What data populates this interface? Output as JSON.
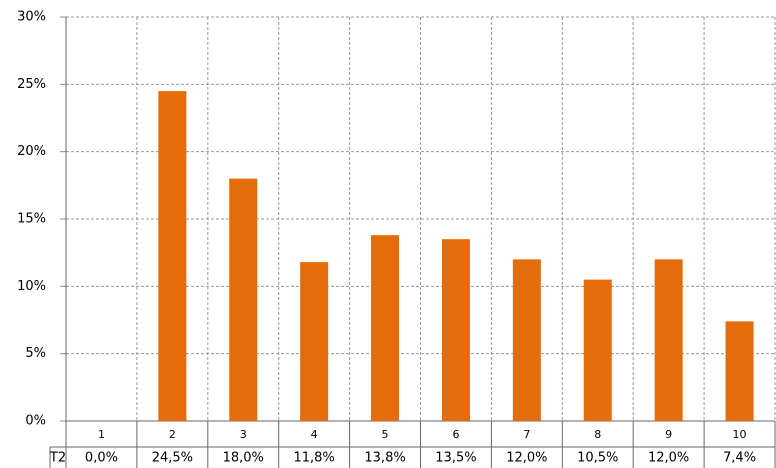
{
  "chart_data": {
    "type": "bar",
    "categories": [
      "1",
      "2",
      "3",
      "4",
      "5",
      "6",
      "7",
      "8",
      "9",
      "10"
    ],
    "series": [
      {
        "name": "T2",
        "color": "#e46c0a",
        "values": [
          0,
          24.5,
          18,
          11.8,
          13.8,
          13.5,
          12,
          10.5,
          12,
          7.4
        ],
        "value_labels": [
          "0,0%",
          "24,5%",
          "18,0%",
          "11,8%",
          "13,8%",
          "13,5%",
          "12,0%",
          "10,5%",
          "12,0%",
          "7,4%"
        ]
      }
    ],
    "ylim": [
      0,
      30
    ],
    "yticks": [
      {
        "value": 0,
        "label": "0%"
      },
      {
        "value": 5,
        "label": "5%"
      },
      {
        "value": 10,
        "label": "10%"
      },
      {
        "value": 15,
        "label": "15%"
      },
      {
        "value": 20,
        "label": "20%"
      },
      {
        "value": 25,
        "label": "25%"
      },
      {
        "value": 30,
        "label": "30%"
      }
    ],
    "grid": true
  }
}
